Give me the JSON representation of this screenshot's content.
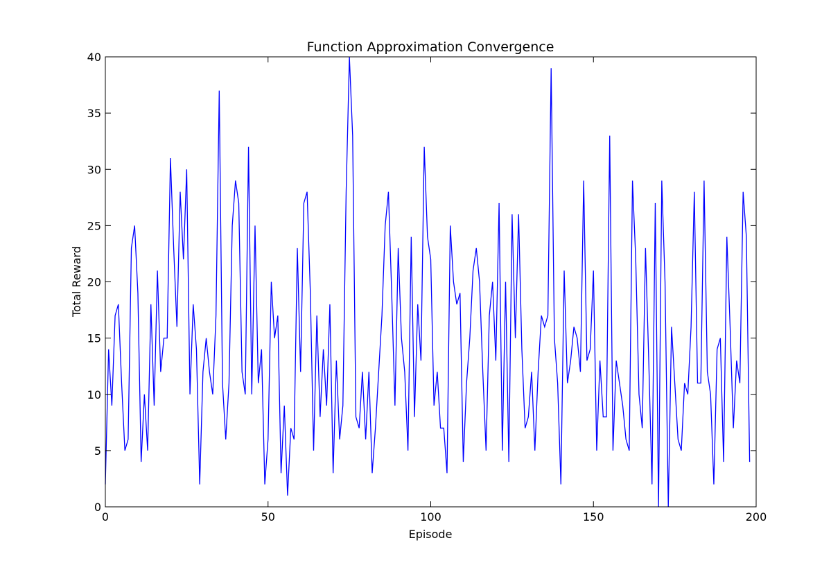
{
  "chart_data": {
    "type": "line",
    "title": "Function Approximation Convergence",
    "xlabel": "Episode",
    "ylabel": "Total Reward",
    "xlim": [
      0,
      200
    ],
    "ylim": [
      0,
      40
    ],
    "xticks": [
      0,
      50,
      100,
      150,
      200
    ],
    "yticks": [
      0,
      5,
      10,
      15,
      20,
      25,
      30,
      35,
      40
    ],
    "grid": false,
    "line_color": "#0000ff",
    "series": [
      {
        "values": [
          2,
          14,
          9,
          17,
          18,
          11,
          5,
          6,
          23,
          25,
          19,
          4,
          10,
          5,
          18,
          9,
          21,
          12,
          15,
          15,
          31,
          23,
          16,
          28,
          22,
          30,
          10,
          18,
          14,
          2,
          12,
          15,
          12,
          10,
          17,
          37,
          11,
          6,
          11,
          25,
          29,
          27,
          12,
          10,
          32,
          10,
          25,
          11,
          14,
          2,
          6,
          20,
          15,
          17,
          3,
          9,
          1,
          7,
          6,
          23,
          12,
          27,
          28,
          19,
          5,
          17,
          8,
          14,
          9,
          18,
          3,
          13,
          6,
          9,
          28,
          40,
          33,
          8,
          7,
          12,
          6,
          12,
          3,
          7,
          12,
          17,
          25,
          28,
          19,
          9,
          23,
          15,
          12,
          5,
          24,
          8,
          18,
          13,
          32,
          24,
          22,
          9,
          12,
          7,
          7,
          3,
          25,
          20,
          18,
          19,
          4,
          11,
          15,
          21,
          23,
          20,
          12,
          5,
          17,
          20,
          13,
          27,
          5,
          20,
          4,
          26,
          15,
          26,
          14,
          7,
          8,
          12,
          5,
          12,
          17,
          16,
          17,
          39,
          15,
          11,
          2,
          21,
          11,
          13,
          16,
          15,
          12,
          29,
          13,
          14,
          21,
          5,
          13,
          8,
          8,
          33,
          5,
          13,
          11,
          9,
          6,
          5,
          29,
          22,
          10,
          7,
          23,
          13,
          2,
          27,
          0,
          29,
          20,
          0,
          16,
          11,
          6,
          5,
          11,
          10,
          16,
          28,
          11,
          11,
          29,
          12,
          10,
          2,
          14,
          15,
          4,
          24,
          16,
          7,
          13,
          11,
          28,
          24,
          4
        ]
      }
    ]
  }
}
